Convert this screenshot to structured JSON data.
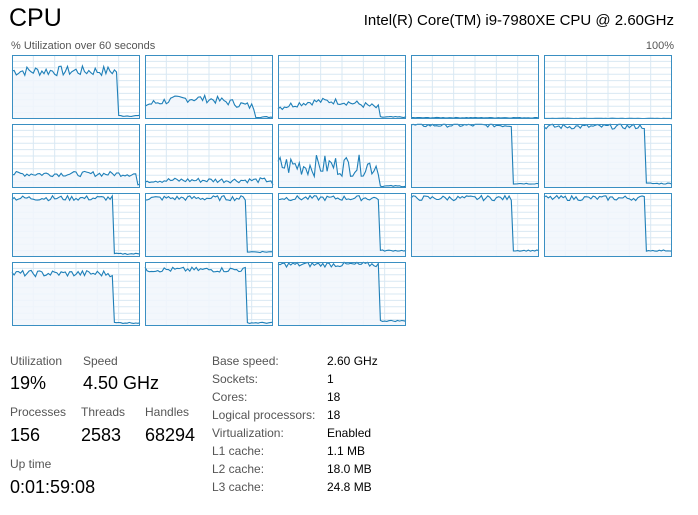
{
  "header": {
    "title": "CPU",
    "cpu_name": "Intel(R) Core(TM) i9-7980XE CPU @ 2.60GHz",
    "util_label": "% Utilization over 60 seconds",
    "util_max": "100%"
  },
  "colors": {
    "line": "#1e7fb8",
    "fill": "#f1f6fb",
    "grid": "#d9e8f3",
    "border": "#3a8fc2"
  },
  "graphs": [
    {
      "level": 0.75,
      "drop_at": 0.82,
      "after": 0.05,
      "noise": 0.08
    },
    {
      "level": 0.22,
      "drop_at": 0.86,
      "after": 0.03,
      "noise": 0.06,
      "hump": true
    },
    {
      "level": 0.18,
      "drop_at": 0.8,
      "after": 0.03,
      "noise": 0.05,
      "hump": true
    },
    {
      "level": 0.02,
      "drop_at": 1.0,
      "after": 0.02,
      "noise": 0.005
    },
    {
      "level": 0.01,
      "drop_at": 1.0,
      "after": 0.01,
      "noise": 0.002
    },
    {
      "level": 0.22,
      "drop_at": 0.98,
      "after": 0.05,
      "noise": 0.04
    },
    {
      "level": 0.12,
      "drop_at": 0.99,
      "after": 0.04,
      "noise": 0.04
    },
    {
      "level": 0.35,
      "drop_at": 0.8,
      "after": 0.03,
      "noise": 0.17
    },
    {
      "level": 0.98,
      "drop_at": 0.8,
      "after": 0.07,
      "noise": 0.03
    },
    {
      "level": 0.96,
      "drop_at": 0.8,
      "after": 0.07,
      "noise": 0.04
    },
    {
      "level": 0.92,
      "drop_at": 0.8,
      "after": 0.05,
      "noise": 0.04
    },
    {
      "level": 0.92,
      "drop_at": 0.8,
      "after": 0.08,
      "noise": 0.04
    },
    {
      "level": 0.92,
      "drop_at": 0.8,
      "after": 0.1,
      "noise": 0.04
    },
    {
      "level": 0.92,
      "drop_at": 0.8,
      "after": 0.1,
      "noise": 0.04
    },
    {
      "level": 0.92,
      "drop_at": 0.8,
      "after": 0.1,
      "noise": 0.04
    },
    {
      "level": 0.82,
      "drop_at": 0.8,
      "after": 0.05,
      "noise": 0.05
    },
    {
      "level": 0.88,
      "drop_at": 0.8,
      "after": 0.05,
      "noise": 0.04
    },
    {
      "level": 0.96,
      "drop_at": 0.8,
      "after": 0.08,
      "noise": 0.04
    }
  ],
  "stats": {
    "utilization": {
      "label": "Utilization",
      "value": "19%"
    },
    "speed": {
      "label": "Speed",
      "value": "4.50 GHz"
    },
    "processes": {
      "label": "Processes",
      "value": "156"
    },
    "threads": {
      "label": "Threads",
      "value": "2583"
    },
    "handles": {
      "label": "Handles",
      "value": "68294"
    },
    "uptime": {
      "label": "Up time",
      "value": "0:01:59:08"
    }
  },
  "details": [
    {
      "key": "Base speed:",
      "value": "2.60 GHz"
    },
    {
      "key": "Sockets:",
      "value": "1"
    },
    {
      "key": "Cores:",
      "value": "18"
    },
    {
      "key": "Logical processors:",
      "value": "18"
    },
    {
      "key": "Virtualization:",
      "value": "Enabled"
    },
    {
      "key": "L1 cache:",
      "value": "1.1 MB"
    },
    {
      "key": "L2 cache:",
      "value": "18.0 MB"
    },
    {
      "key": "L3 cache:",
      "value": "24.8 MB"
    }
  ]
}
